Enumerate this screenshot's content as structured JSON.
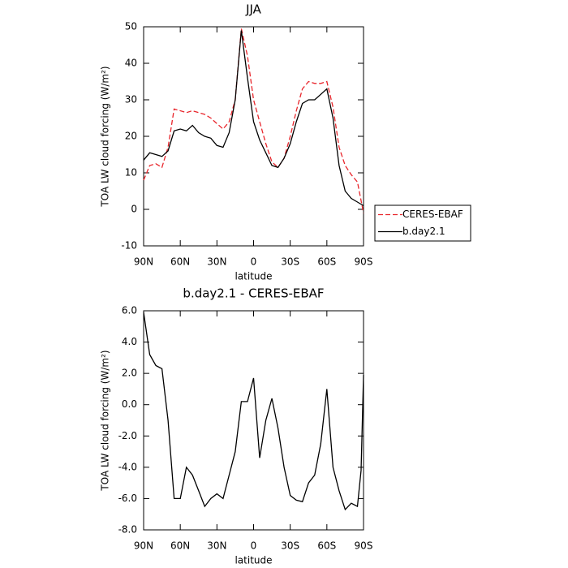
{
  "chart_data": [
    {
      "type": "line",
      "title": "JJA",
      "x_label": "latitude",
      "y_label": "TOA LW cloud forcing (W/m²)",
      "x": [
        90,
        85,
        80,
        75,
        70,
        65,
        60,
        55,
        50,
        45,
        40,
        35,
        30,
        25,
        20,
        15,
        10,
        5,
        0,
        -5,
        -10,
        -15,
        -20,
        -25,
        -30,
        -35,
        -40,
        -45,
        -50,
        -55,
        -60,
        -65,
        -70,
        -75,
        -80,
        -85,
        -90
      ],
      "series": [
        {
          "name": "CERES-EBAF",
          "color": "#e8262c",
          "dash": true,
          "values": [
            8,
            12,
            12.5,
            11.5,
            17,
            27.5,
            27,
            26.5,
            27,
            26.5,
            26,
            25,
            23.5,
            22,
            24,
            30,
            49.5,
            42,
            30,
            24,
            18,
            13,
            11.5,
            14,
            20,
            27,
            33,
            35,
            34.5,
            34.5,
            35,
            28,
            17,
            12,
            9.5,
            7.5,
            -1
          ]
        },
        {
          "name": "b.day2.1",
          "color": "#000000",
          "dash": false,
          "values": [
            13.5,
            15.5,
            15,
            14.5,
            16,
            21.5,
            22,
            21.5,
            23,
            21,
            20,
            19.5,
            17.5,
            17,
            21,
            30,
            49,
            36,
            24,
            19,
            15.5,
            12,
            11.5,
            14,
            18,
            24,
            29,
            30,
            30,
            31.5,
            33,
            25,
            12,
            5,
            3,
            2,
            1
          ]
        }
      ],
      "xlim": [
        90,
        -90
      ],
      "xticks": [
        {
          "value": 90,
          "label": "90N"
        },
        {
          "value": 60,
          "label": "60N"
        },
        {
          "value": 30,
          "label": "30N"
        },
        0,
        {
          "value": -30,
          "label": "30S"
        },
        {
          "value": -60,
          "label": "60S"
        },
        {
          "value": -90,
          "label": "90S"
        }
      ],
      "ylim": [
        -10,
        50
      ],
      "yticks": [
        -10,
        0,
        10,
        20,
        30,
        40,
        50
      ],
      "legend": "right"
    },
    {
      "type": "line",
      "title": "b.day2.1 - CERES-EBAF",
      "x_label": "latitude",
      "y_label": "TOA LW cloud forcing (W/m²)",
      "x": [
        90,
        85,
        80,
        75,
        70,
        65,
        60,
        55,
        50,
        45,
        40,
        35,
        30,
        25,
        20,
        15,
        10,
        5,
        0,
        -5,
        -10,
        -15,
        -20,
        -25,
        -30,
        -35,
        -40,
        -45,
        -50,
        -55,
        -60,
        -65,
        -70,
        -75,
        -80,
        -85,
        -88,
        -90
      ],
      "series": [
        {
          "color": "#000000",
          "dash": false,
          "values": [
            5.9,
            3.2,
            2.5,
            2.3,
            -1,
            -6,
            -6,
            -4,
            -4.5,
            -5.5,
            -6.5,
            -6,
            -5.7,
            -6,
            -4.5,
            -3,
            0.2,
            0.2,
            1.7,
            -3.4,
            -1,
            0.4,
            -1.5,
            -4,
            -5.8,
            -6.1,
            -6.2,
            -5,
            -4.5,
            -2.5,
            1,
            -4,
            -5.5,
            -6.7,
            -6.3,
            -6.5,
            -4.2,
            1.9
          ]
        }
      ],
      "xlim": [
        90,
        -90
      ],
      "xticks": [
        {
          "value": 90,
          "label": "90N"
        },
        {
          "value": 60,
          "label": "60N"
        },
        {
          "value": 30,
          "label": "30N"
        },
        0,
        {
          "value": -30,
          "label": "30S"
        },
        {
          "value": -60,
          "label": "60S"
        },
        {
          "value": -90,
          "label": "90S"
        }
      ],
      "ylim": [
        -8,
        6
      ],
      "yticks": [
        {
          "value": -8,
          "label": "-8.0"
        },
        {
          "value": -6,
          "label": "-6.0"
        },
        {
          "value": -4,
          "label": "-4.0"
        },
        {
          "value": -2,
          "label": "-2.0"
        },
        {
          "value": 0,
          "label": "0.0"
        },
        {
          "value": 2,
          "label": "2.0"
        },
        {
          "value": 4,
          "label": "4.0"
        },
        {
          "value": 6,
          "label": "6.0"
        }
      ]
    }
  ]
}
